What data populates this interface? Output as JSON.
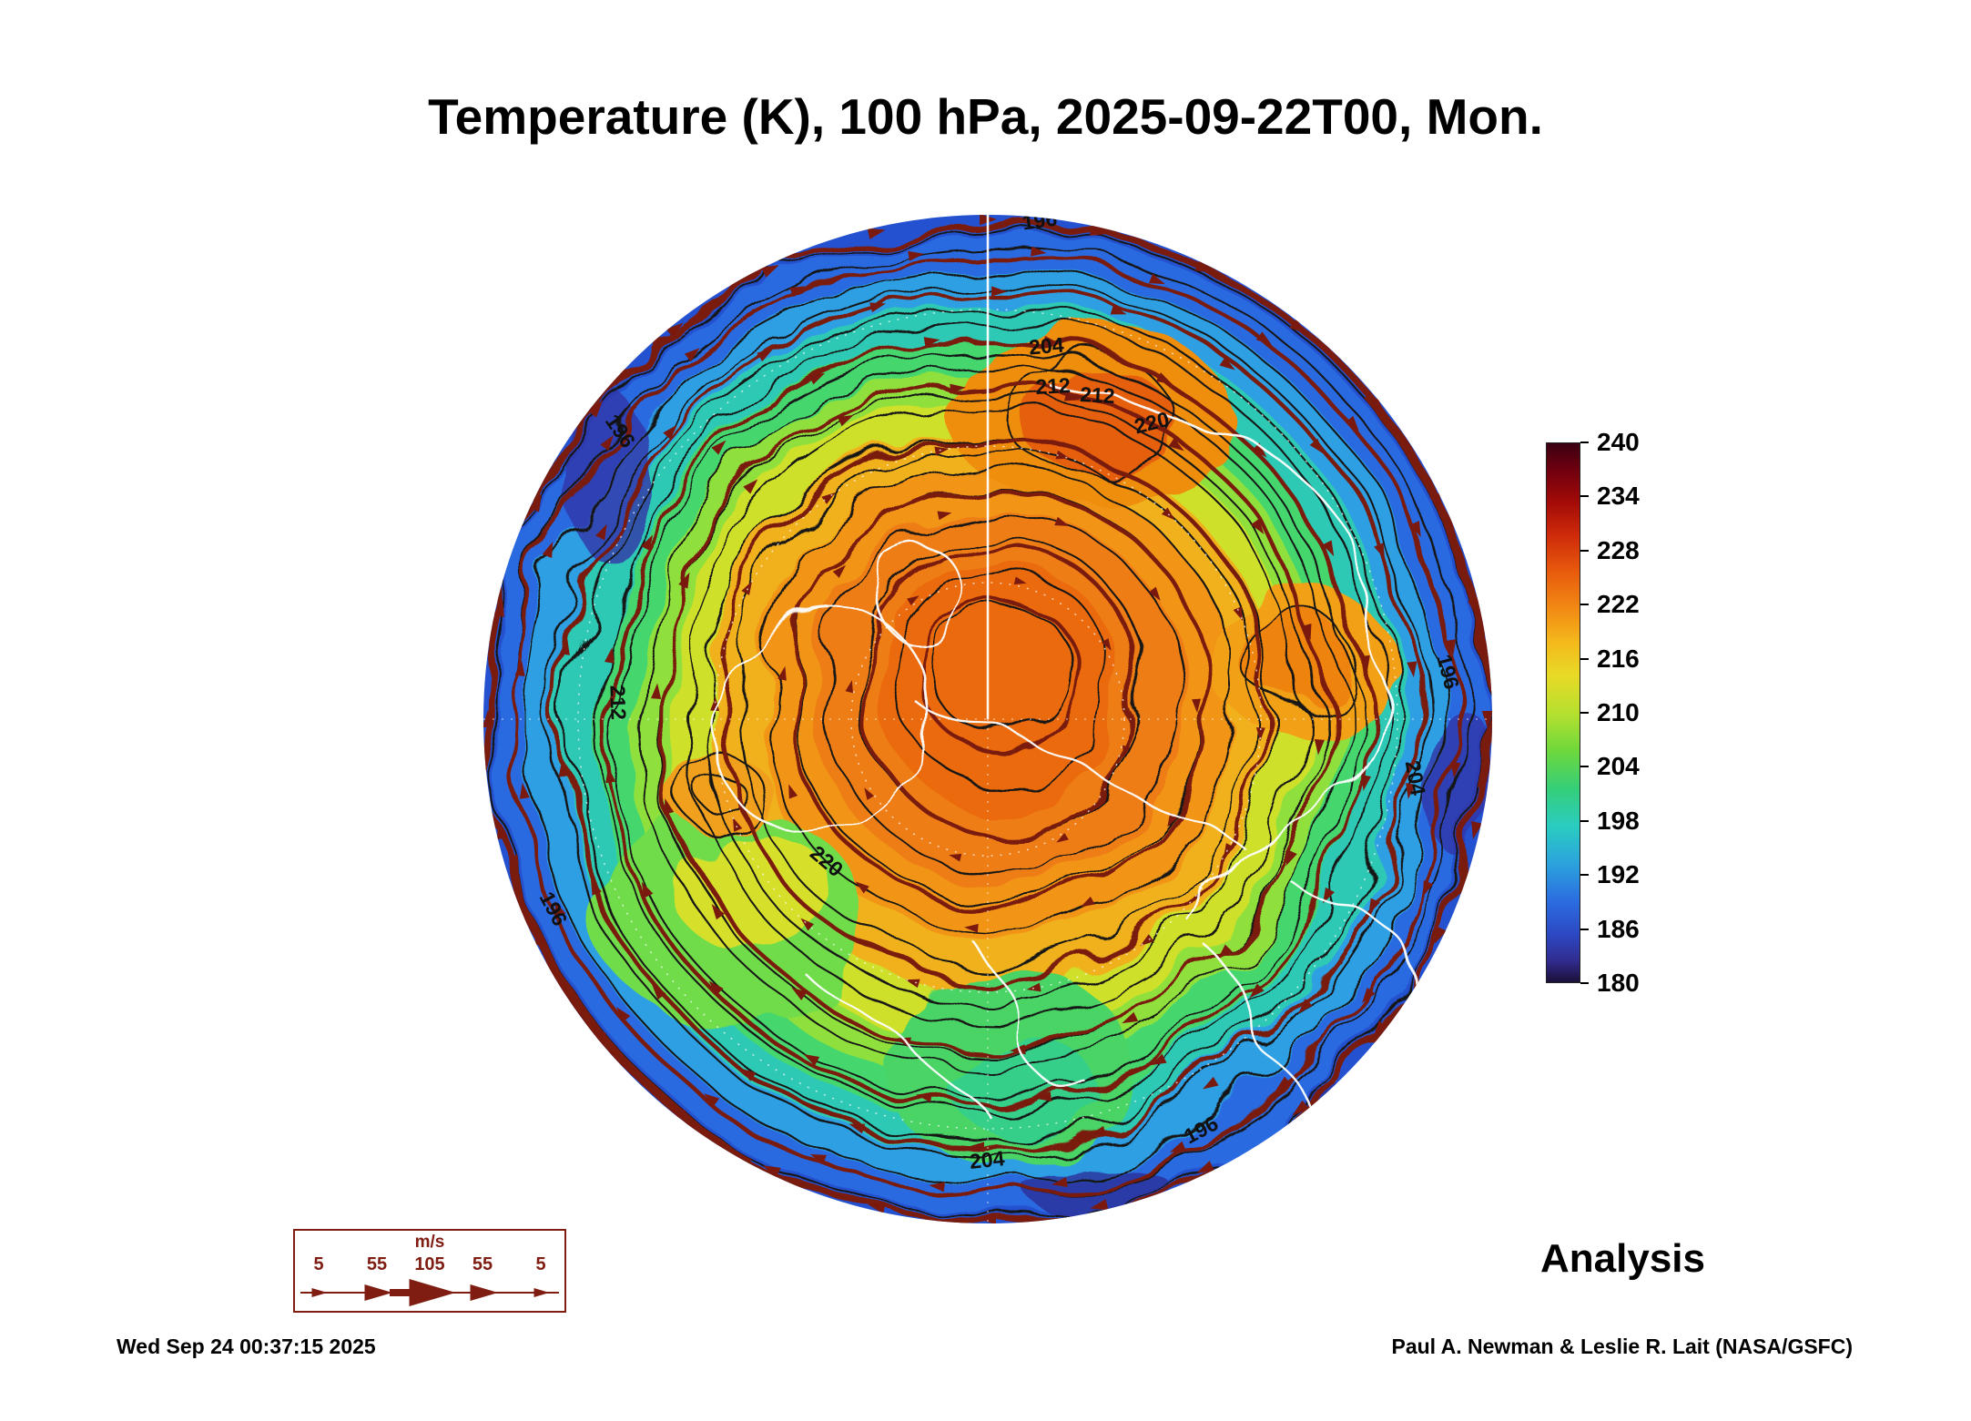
{
  "page": {
    "title": "Temperature (K), 100 hPa, 2025-09-22T00, Mon."
  },
  "colorbar": {
    "ticks": [
      "240",
      "234",
      "228",
      "222",
      "216",
      "210",
      "204",
      "198",
      "192",
      "186",
      "180"
    ]
  },
  "wind_legend": {
    "units": "m/s",
    "values": [
      "5",
      "55",
      "105",
      "55",
      "5"
    ]
  },
  "annotations": {
    "analysis": "Analysis",
    "timestamp": "Wed Sep 24 00:37:15 2025",
    "credit": "Paul A. Newman & Leslie R. Lait (NASA/GSFC)"
  },
  "chart_data": {
    "type": "heatmap",
    "title": "Temperature (K), 100 hPa, 2025-09-22T00, Mon.",
    "variable": "Temperature",
    "units": "K",
    "pressure_level": "100 hPa",
    "valid_time": "2025-09-22T00",
    "weekday": "Mon.",
    "product": "Analysis",
    "projection": "Northern Hemisphere polar stereographic disk",
    "colorbar": {
      "min": 180,
      "max": 240,
      "tick_interval": 6,
      "ticks": [
        240,
        234,
        228,
        222,
        216,
        210,
        204,
        198,
        192,
        186,
        180
      ],
      "colors_top_to_bottom": [
        "#3b0012",
        "#70000f",
        "#a30b07",
        "#ce2a0a",
        "#e85c0d",
        "#f28c14",
        "#f4b91c",
        "#e8da26",
        "#b7e02e",
        "#6fd83c",
        "#35cf78",
        "#2accc0",
        "#2ba3dd",
        "#2b6ce0",
        "#2c49c4",
        "#312c8f",
        "#1c1038"
      ]
    },
    "labeled_contours_K": [
      196,
      204,
      212,
      220
    ],
    "contour_labels": [
      {
        "text": "196"
      },
      {
        "text": "204"
      },
      {
        "text": "212"
      },
      {
        "text": "212"
      },
      {
        "text": "220"
      },
      {
        "text": "196"
      },
      {
        "text": "204"
      },
      {
        "text": "196"
      },
      {
        "text": "212"
      },
      {
        "text": "196"
      },
      {
        "text": "204"
      },
      {
        "text": "196"
      },
      {
        "text": "220"
      }
    ],
    "field_pattern": {
      "warm_core_region_K": "≈220-228 orange/red core over the pole interior",
      "cold_edge_region_K": "≈186-196 blue/purple ring at the disk edge",
      "streamlines": "dark red wind streamlines with arrowheads encircling the pole"
    },
    "wind_legend": {
      "units": "m/s",
      "values": [
        5,
        55,
        105,
        55,
        5
      ]
    }
  }
}
